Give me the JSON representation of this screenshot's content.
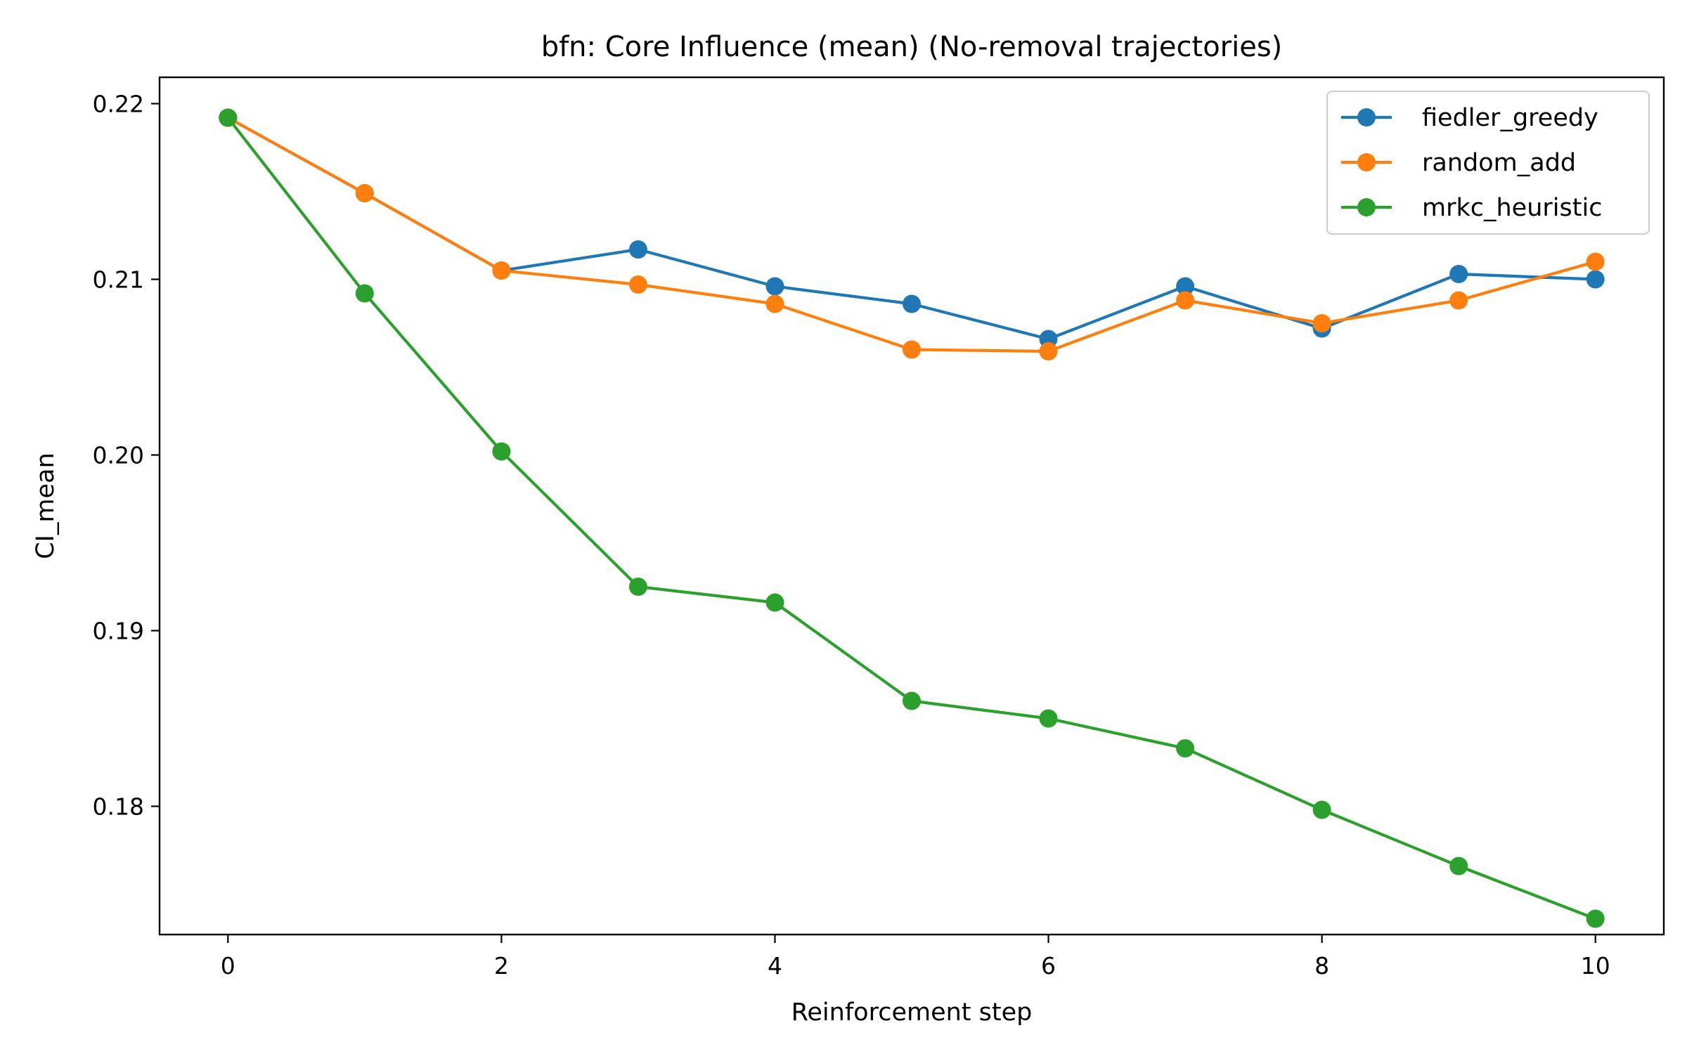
{
  "chart_data": {
    "type": "line",
    "title": "bfn: Core Influence (mean) (No-removal trajectories)",
    "xlabel": "Reinforcement step",
    "ylabel": "CI_mean",
    "x": [
      0,
      1,
      2,
      3,
      4,
      5,
      6,
      7,
      8,
      9,
      10
    ],
    "xlim": [
      -0.5,
      10.5
    ],
    "ylim": [
      0.1727,
      0.2215
    ],
    "xticks": [
      0,
      2,
      4,
      6,
      8,
      10
    ],
    "xtick_labels": [
      "0",
      "2",
      "4",
      "6",
      "8",
      "10"
    ],
    "yticks": [
      0.18,
      0.19,
      0.2,
      0.21,
      0.22
    ],
    "ytick_labels": [
      "0.18",
      "0.19",
      "0.20",
      "0.21",
      "0.22"
    ],
    "grid": false,
    "legend_position": "top-right",
    "series": [
      {
        "name": "fiedler_greedy",
        "color": "#1f77b4",
        "marker": "circle",
        "values": [
          0.2192,
          0.2149,
          0.2105,
          0.2117,
          0.2096,
          0.2086,
          0.2066,
          0.2096,
          0.2072,
          0.2103,
          0.21
        ]
      },
      {
        "name": "random_add",
        "color": "#ff7f0e",
        "marker": "circle",
        "values": [
          0.2192,
          0.2149,
          0.2105,
          0.2097,
          0.2086,
          0.206,
          0.2059,
          0.2088,
          0.2075,
          0.2088,
          0.211
        ]
      },
      {
        "name": "mrkc_heuristic",
        "color": "#2ca02c",
        "marker": "circle",
        "values": [
          0.2192,
          0.2092,
          0.2002,
          0.1925,
          0.1916,
          0.186,
          0.185,
          0.1833,
          0.1798,
          0.1766,
          0.1736
        ]
      }
    ]
  }
}
